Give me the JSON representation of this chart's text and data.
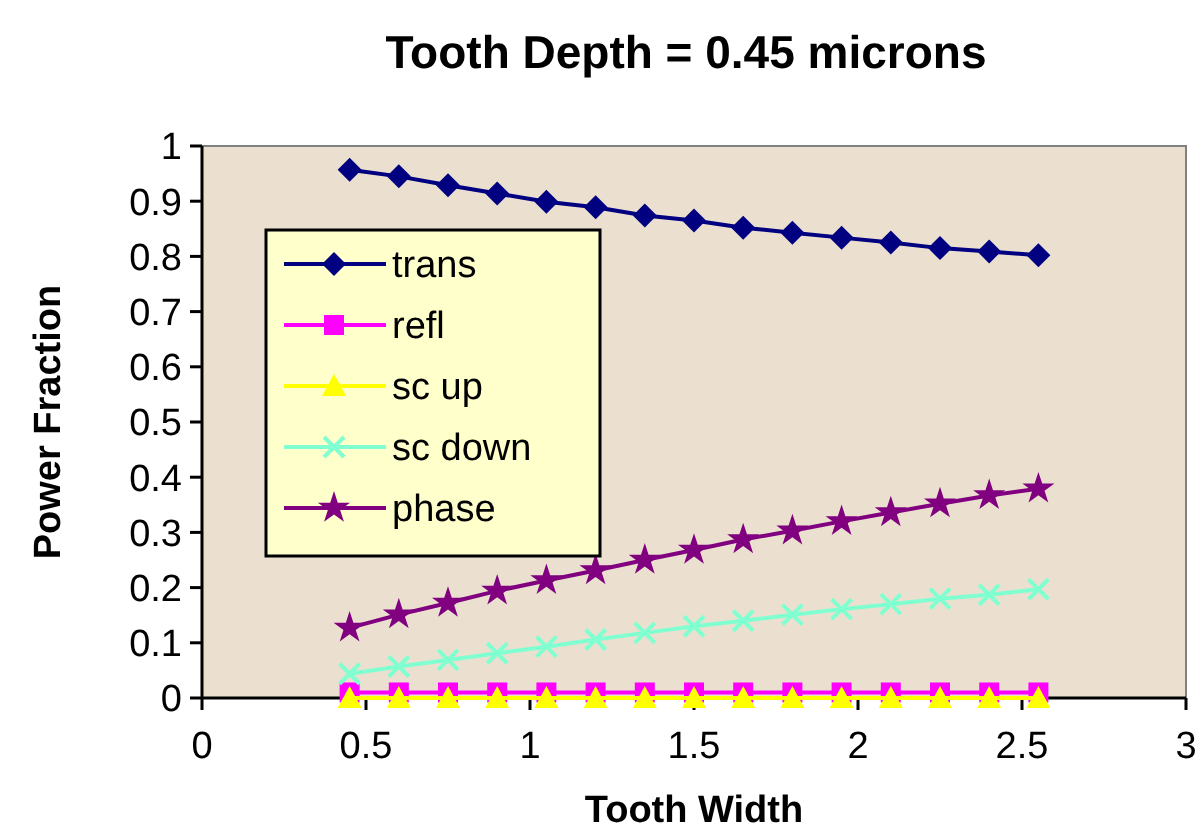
{
  "chart_data": {
    "type": "line",
    "title": "Tooth Depth = 0.45 microns",
    "xlabel": "Tooth Width",
    "ylabel": "Power Fraction",
    "x": [
      0.45,
      0.6,
      0.75,
      0.9,
      1.05,
      1.2,
      1.35,
      1.5,
      1.65,
      1.8,
      1.95,
      2.1,
      2.25,
      2.4,
      2.55
    ],
    "series": [
      {
        "name": "trans",
        "color": "#000080",
        "marker": "diamond",
        "values": [
          0.957,
          0.945,
          0.929,
          0.914,
          0.899,
          0.889,
          0.874,
          0.865,
          0.852,
          0.843,
          0.834,
          0.825,
          0.815,
          0.809,
          0.802
        ]
      },
      {
        "name": "refl",
        "color": "#ff00ff",
        "marker": "square",
        "values": [
          0.01,
          0.01,
          0.01,
          0.01,
          0.01,
          0.01,
          0.01,
          0.01,
          0.01,
          0.01,
          0.01,
          0.01,
          0.01,
          0.01,
          0.01
        ]
      },
      {
        "name": "sc up",
        "color": "#ffff00",
        "marker": "triangle",
        "values": [
          0,
          0,
          0,
          0,
          0,
          0,
          0,
          0,
          0,
          0,
          0,
          0,
          0,
          0,
          0
        ]
      },
      {
        "name": "sc down",
        "color": "#80ffd0",
        "marker": "cross",
        "values": [
          0.044,
          0.057,
          0.069,
          0.081,
          0.093,
          0.106,
          0.118,
          0.13,
          0.14,
          0.151,
          0.161,
          0.17,
          0.18,
          0.187,
          0.197
        ]
      },
      {
        "name": "phase",
        "color": "#800080",
        "marker": "star",
        "values": [
          0.127,
          0.151,
          0.172,
          0.194,
          0.213,
          0.231,
          0.25,
          0.268,
          0.287,
          0.303,
          0.32,
          0.336,
          0.352,
          0.367,
          0.379
        ]
      }
    ],
    "xlim": [
      0,
      3
    ],
    "xticks": [
      0,
      0.5,
      1,
      1.5,
      2,
      2.5,
      3
    ],
    "ylim": [
      0,
      1
    ],
    "yticks": [
      0,
      0.1,
      0.2,
      0.3,
      0.4,
      0.5,
      0.6,
      0.7,
      0.8,
      0.9,
      1
    ],
    "grid": false,
    "legend": "top left"
  }
}
